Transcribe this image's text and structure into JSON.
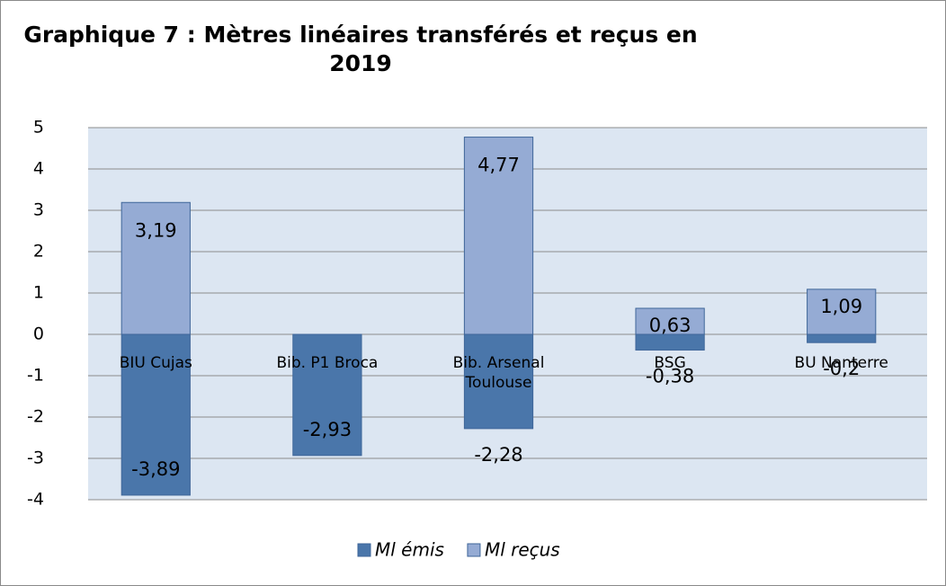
{
  "chart_data": {
    "type": "bar",
    "stacked": true,
    "title": "Graphique 7 : Mètres linéaires transférés et reçus en 2019",
    "categories": [
      "BIU Cujas",
      "Bib. P1 Broca",
      "Bib. Arsenal Toulouse",
      "BSG",
      "BU Nanterre"
    ],
    "series": [
      {
        "name": "Ml émis",
        "color": "#4a76aa",
        "values": [
          -3.89,
          -2.93,
          -2.28,
          -0.38,
          -0.2
        ],
        "value_labels": [
          "-3,89",
          "-2,93",
          "-2,28",
          "-0,38",
          "-0,2"
        ]
      },
      {
        "name": "Ml reçus",
        "color": "#95abd4",
        "values": [
          3.19,
          null,
          4.77,
          0.63,
          1.09
        ],
        "value_labels": [
          "3,19",
          null,
          "4,77",
          "0,63",
          "1,09"
        ]
      }
    ],
    "ylim": [
      -4,
      5
    ],
    "yticks": [
      -4,
      -3,
      -2,
      -1,
      0,
      1,
      2,
      3,
      4,
      5
    ],
    "grid": true,
    "legend": "bottom"
  }
}
